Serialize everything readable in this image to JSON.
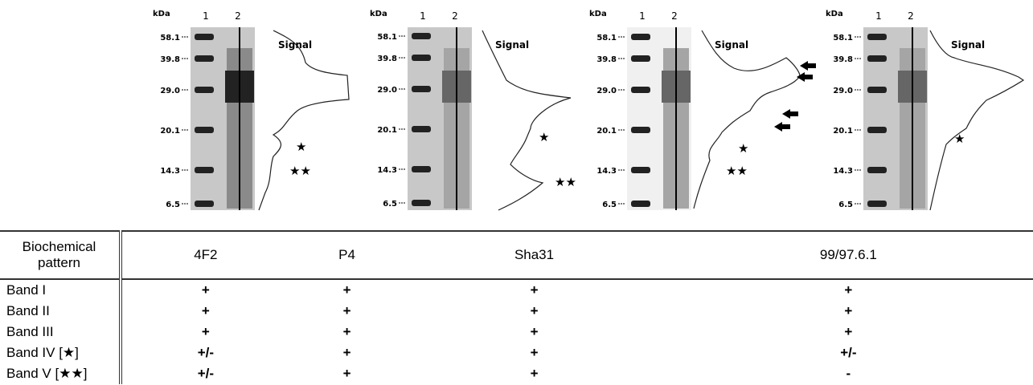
{
  "panels": [
    {
      "kda": "kDa",
      "lanes": [
        "1",
        "2"
      ],
      "markers": [
        "58.1",
        "39.8",
        "29.0",
        "20.1",
        "14.3",
        "6.5"
      ],
      "signal": "Signal",
      "annotations": [
        "★",
        "★★"
      ]
    },
    {
      "kda": "kDa",
      "lanes": [
        "1",
        "2"
      ],
      "markers": [
        "58.1",
        "39.8",
        "29.0",
        "20.1",
        "14.3",
        "6.5"
      ],
      "signal": "Signal",
      "annotations": [
        "★",
        "★★"
      ]
    },
    {
      "kda": "kDa",
      "lanes": [
        "1",
        "2"
      ],
      "markers": [
        "58.1",
        "39.8",
        "29.0",
        "20.1",
        "14.3",
        "6.5"
      ],
      "signal": "Signal",
      "annotations": [
        "★",
        "★★"
      ]
    },
    {
      "kda": "kDa",
      "lanes": [
        "1",
        "2"
      ],
      "markers": [
        "58.1",
        "39.8",
        "29.0",
        "20.1",
        "14.3",
        "6.5"
      ],
      "signal": "Signal",
      "annotations": [
        "★"
      ]
    }
  ],
  "table": {
    "header": [
      "Biochemical pattern",
      "4F2",
      "P4",
      "Sha31",
      "99/97.6.1"
    ],
    "rows": [
      [
        "Band I",
        "+",
        "+",
        "+",
        "+"
      ],
      [
        "Band II",
        "+",
        "+",
        "+",
        "+"
      ],
      [
        "Band III",
        "+",
        "+",
        "+",
        "+"
      ],
      [
        "Band IV [★]",
        "+/-",
        "+",
        "+",
        "+/-"
      ],
      [
        "Band V [★★]",
        "+/-",
        "+",
        "+",
        "-"
      ]
    ]
  }
}
